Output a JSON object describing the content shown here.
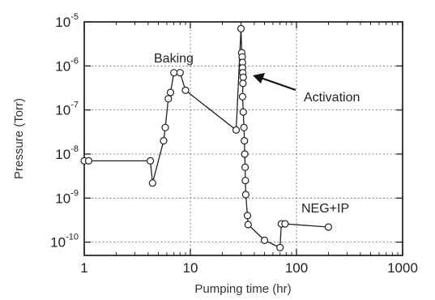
{
  "chart_data": {
    "type": "scatter",
    "xlabel": "Pumping time (hr)",
    "ylabel": "Pressure  (Torr)",
    "xscale": "log",
    "yscale": "log",
    "xlim": [
      1,
      1000
    ],
    "ylim": [
      5e-11,
      1e-05
    ],
    "grid": true,
    "x_ticks": [
      {
        "value": 1,
        "label": "1"
      },
      {
        "value": 10,
        "label": "10"
      },
      {
        "value": 100,
        "label": "100"
      },
      {
        "value": 1000,
        "label": "1000"
      }
    ],
    "y_ticks": [
      {
        "value": 1e-05,
        "base": "10",
        "exp": "-5"
      },
      {
        "value": 1e-06,
        "base": "10",
        "exp": "-6"
      },
      {
        "value": 1e-07,
        "base": "10",
        "exp": "-7"
      },
      {
        "value": 1e-08,
        "base": "10",
        "exp": "-8"
      },
      {
        "value": 1e-09,
        "base": "10",
        "exp": "-9"
      },
      {
        "value": 1e-10,
        "base": "10",
        "exp": "-10"
      }
    ],
    "series": [
      {
        "points": [
          {
            "x": 1.0,
            "y": 7e-09
          },
          {
            "x": 1.1,
            "y": 7e-09
          },
          {
            "x": 4.2,
            "y": 7e-09
          },
          {
            "x": 4.4,
            "y": 2.2e-09
          },
          {
            "x": 5.6,
            "y": 2e-08
          },
          {
            "x": 5.8,
            "y": 4e-08
          },
          {
            "x": 6.2,
            "y": 1.8e-07
          },
          {
            "x": 6.5,
            "y": 2.5e-07
          },
          {
            "x": 7.0,
            "y": 7e-07
          },
          {
            "x": 8.0,
            "y": 7e-07
          },
          {
            "x": 9.0,
            "y": 2.8e-07
          },
          {
            "x": 27,
            "y": 3.5e-08
          },
          {
            "x": 30,
            "y": 7e-06
          },
          {
            "x": 30.5,
            "y": 2e-06
          },
          {
            "x": 30.8,
            "y": 1.6e-06
          },
          {
            "x": 31,
            "y": 1.2e-06
          },
          {
            "x": 31,
            "y": 9e-07
          },
          {
            "x": 31.2,
            "y": 7e-07
          },
          {
            "x": 31.5,
            "y": 5.5e-07
          },
          {
            "x": 31.3,
            "y": 4e-07
          },
          {
            "x": 31,
            "y": 2e-07
          },
          {
            "x": 31.5,
            "y": 9e-08
          },
          {
            "x": 32,
            "y": 4e-08
          },
          {
            "x": 32.3,
            "y": 2e-08
          },
          {
            "x": 32.5,
            "y": 1e-08
          },
          {
            "x": 32.8,
            "y": 5e-09
          },
          {
            "x": 33,
            "y": 2.5e-09
          },
          {
            "x": 33.3,
            "y": 1.2e-09
          },
          {
            "x": 34.5,
            "y": 4e-10
          },
          {
            "x": 35,
            "y": 2.5e-10
          },
          {
            "x": 50,
            "y": 1.1e-10
          },
          {
            "x": 70,
            "y": 7.5e-11
          },
          {
            "x": 72,
            "y": 2.6e-10
          },
          {
            "x": 78,
            "y": 2.6e-10
          },
          {
            "x": 200,
            "y": 2.2e-10
          }
        ]
      }
    ],
    "annotations": [
      {
        "text": "Baking"
      },
      {
        "text": "Activation"
      },
      {
        "text": "NEG+IP"
      }
    ]
  }
}
